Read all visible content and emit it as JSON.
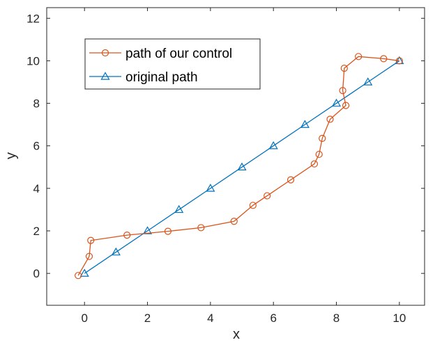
{
  "chart_data": {
    "type": "line",
    "xlabel": "x",
    "ylabel": "y",
    "xlim": [
      -1.2,
      10.8
    ],
    "ylim": [
      -1.5,
      12.5
    ],
    "xticks": [
      0,
      2,
      4,
      6,
      8,
      10
    ],
    "yticks": [
      0,
      2,
      4,
      6,
      8,
      10,
      12
    ],
    "grid": false,
    "legend_position": "top-left",
    "series": [
      {
        "name": "path of our control",
        "color": "#D95319",
        "marker": "circle",
        "x": [
          -0.2,
          0.15,
          0.2,
          1.35,
          2.65,
          3.7,
          4.75,
          5.35,
          5.8,
          6.55,
          7.3,
          7.45,
          7.55,
          7.8,
          8.3,
          8.2,
          8.25,
          8.7,
          9.5,
          10.0
        ],
        "y": [
          -0.1,
          0.8,
          1.55,
          1.8,
          1.98,
          2.15,
          2.45,
          3.2,
          3.65,
          4.4,
          5.15,
          5.6,
          6.35,
          7.25,
          7.9,
          8.6,
          9.65,
          10.2,
          10.1,
          10.0
        ]
      },
      {
        "name": "original path",
        "color": "#0072BD",
        "marker": "triangle",
        "x": [
          0,
          1,
          2,
          3,
          4,
          5,
          6,
          7,
          8,
          9,
          10
        ],
        "y": [
          0,
          1,
          2,
          3,
          4,
          5,
          6,
          7,
          8,
          9,
          10
        ]
      }
    ]
  }
}
